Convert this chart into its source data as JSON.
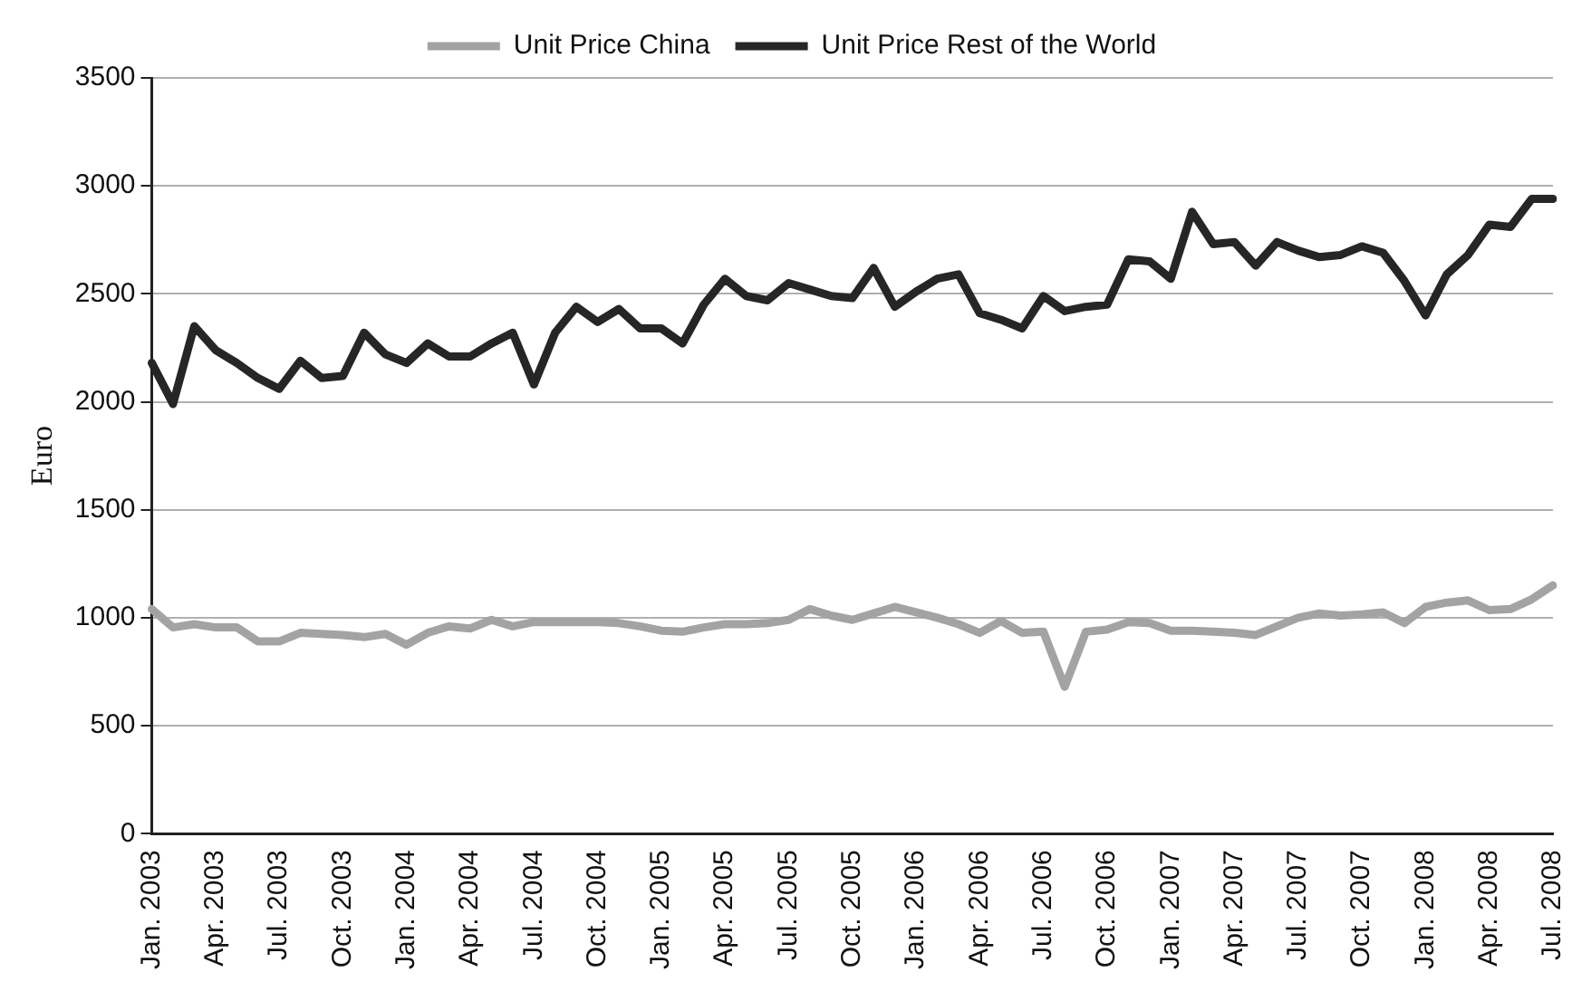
{
  "chart_data": {
    "type": "line",
    "ylabel": "Euro",
    "categories": [
      "Jan. 2003",
      null,
      null,
      "Apr. 2003",
      null,
      null,
      "Jul. 2003",
      null,
      null,
      "Oct. 2003",
      null,
      null,
      "Jan. 2004",
      null,
      null,
      "Apr. 2004",
      null,
      null,
      "Jul. 2004",
      null,
      null,
      "Oct. 2004",
      null,
      null,
      "Jan. 2005",
      null,
      null,
      "Apr. 2005",
      null,
      null,
      "Jul. 2005",
      null,
      null,
      "Oct. 2005",
      null,
      null,
      "Jan. 2006",
      null,
      null,
      "Apr. 2006",
      null,
      null,
      "Jul. 2006",
      null,
      null,
      "Oct. 2006",
      null,
      null,
      "Jan. 2007",
      null,
      null,
      "Apr. 2007",
      null,
      null,
      "Jul. 2007",
      null,
      null,
      "Oct. 2007",
      null,
      null,
      "Jan. 2008",
      null,
      null,
      "Apr. 2008",
      null,
      null,
      "Jul. 2008"
    ],
    "series": [
      {
        "name": "Unit Price China",
        "color": "#a3a3a3",
        "values": [
          1040,
          955,
          970,
          955,
          955,
          890,
          890,
          930,
          925,
          920,
          910,
          925,
          875,
          930,
          960,
          950,
          990,
          960,
          980,
          980,
          980,
          980,
          975,
          960,
          940,
          935,
          955,
          970,
          970,
          975,
          990,
          1040,
          1010,
          990,
          1020,
          1050,
          1025,
          1000,
          970,
          930,
          985,
          930,
          935,
          680,
          935,
          945,
          980,
          975,
          940,
          940,
          935,
          930,
          920,
          960,
          1000,
          1020,
          1010,
          1015,
          1025,
          975,
          1050,
          1070,
          1080,
          1035,
          1040,
          1085,
          1150
        ]
      },
      {
        "name": "Unit Price Rest of the World",
        "color": "#262626",
        "values": [
          2180,
          1990,
          2350,
          2240,
          2180,
          2110,
          2060,
          2190,
          2110,
          2120,
          2320,
          2220,
          2180,
          2270,
          2210,
          2210,
          2270,
          2320,
          2080,
          2320,
          2440,
          2370,
          2430,
          2340,
          2340,
          2270,
          2450,
          2570,
          2490,
          2470,
          2550,
          2520,
          2490,
          2480,
          2620,
          2440,
          2510,
          2570,
          2590,
          2410,
          2380,
          2340,
          2490,
          2420,
          2440,
          2450,
          2660,
          2650,
          2570,
          2880,
          2730,
          2740,
          2630,
          2740,
          2700,
          2670,
          2680,
          2720,
          2690,
          2560,
          2400,
          2590,
          2680,
          2820,
          2810,
          2940,
          2940
        ]
      }
    ],
    "ylim": [
      0,
      3500
    ],
    "yticks": [
      0,
      500,
      1000,
      1500,
      2000,
      2500,
      3000,
      3500
    ],
    "grid": "y",
    "legend": "top",
    "marker": "none",
    "line_style": "solid"
  }
}
